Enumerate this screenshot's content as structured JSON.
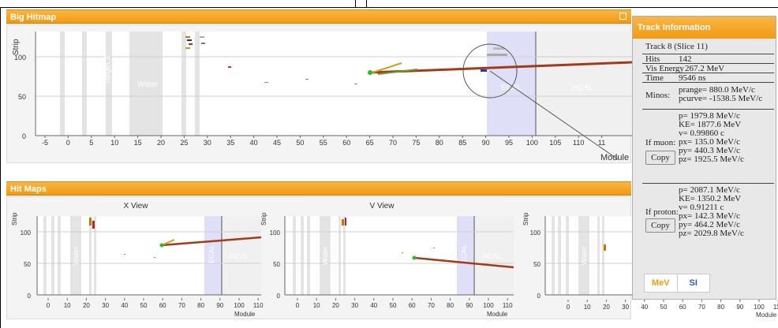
{
  "big_hitmap": {
    "title": "Big Hitmap",
    "y_label": "Strip",
    "x_label": "Module",
    "y_ticks": [
      "0",
      "50",
      "100"
    ],
    "x_ticks": [
      "-5",
      "0",
      "5",
      "10",
      "15",
      "20",
      "25",
      "30",
      "35",
      "40",
      "45",
      "50",
      "55",
      "60",
      "65",
      "70",
      "75",
      "80",
      "85",
      "90",
      "95",
      "100",
      "105",
      "110",
      "11"
    ],
    "regions": [
      "Target 3",
      "Water",
      "ECAL",
      "HCAL"
    ]
  },
  "hit_maps": {
    "title": "Hit Maps",
    "x_view": {
      "title": "X View",
      "y_label": "Strip",
      "x_label": "Module",
      "y_ticks": [
        "0",
        "50",
        "100"
      ],
      "x_ticks": [
        "0",
        "10",
        "20",
        "30",
        "40",
        "50",
        "60",
        "70",
        "80",
        "90",
        "100",
        "110"
      ],
      "regions": [
        "Water",
        "ECAL",
        "HCAL"
      ]
    },
    "v_view": {
      "title": "V View",
      "y_label": "Strip",
      "x_label": "Module",
      "y_ticks": [
        "0",
        "50",
        "100"
      ],
      "x_ticks": [
        "0",
        "10",
        "20",
        "30",
        "40",
        "50",
        "60",
        "70",
        "80",
        "90",
        "100",
        "110"
      ],
      "regions": [
        "Water",
        "ECAL",
        "HCAL"
      ]
    },
    "u_view": {
      "y_label": "Strip",
      "x_label": "Module",
      "y_ticks": [
        "0",
        "50",
        "100"
      ],
      "x_ticks": [
        "0",
        "10",
        "20",
        "30",
        "40",
        "50",
        "60",
        "70",
        "80",
        "90",
        "100",
        "110"
      ],
      "regions": [
        "Water"
      ]
    }
  },
  "track_info": {
    "title": "Track Information",
    "track": "Track 8 (Slice 11)",
    "hits_label": "Hits",
    "hits_value": "142",
    "vis_label": "Vis Energy",
    "vis_value": "267.2 MeV",
    "time_label": "Time",
    "time_value": "9546 ns",
    "minos_label": "Minos:",
    "minos_lines": [
      "prange= 880.0 MeV/c",
      "pcurve= -1538.5 MeV/c"
    ],
    "muon_label": "If muon:",
    "muon_lines": [
      "p= 1979.8 MeV/c",
      "KE= 1877.6 MeV",
      "v= 0.99860 c",
      "px= 135.0 MeV/c",
      "py= 440.3 MeV/c",
      "pz= 1925.5 MeV/c"
    ],
    "proton_label": "If proton:",
    "proton_lines": [
      "p= 2087.1 MeV/c",
      "KE= 1350.2 MeV",
      "v= 0.91211 c",
      "px= 142.3 MeV/c",
      "py= 464.2 MeV/c",
      "pz= 2029.8 MeV/c"
    ],
    "copy_label": "Copy",
    "unit_mev": "MeV",
    "unit_si": "SI"
  },
  "colors": {
    "header": "#f29a12",
    "ecal_band": "#dfe0f7",
    "track": "#a33a1a",
    "vertex": "#22c022"
  }
}
